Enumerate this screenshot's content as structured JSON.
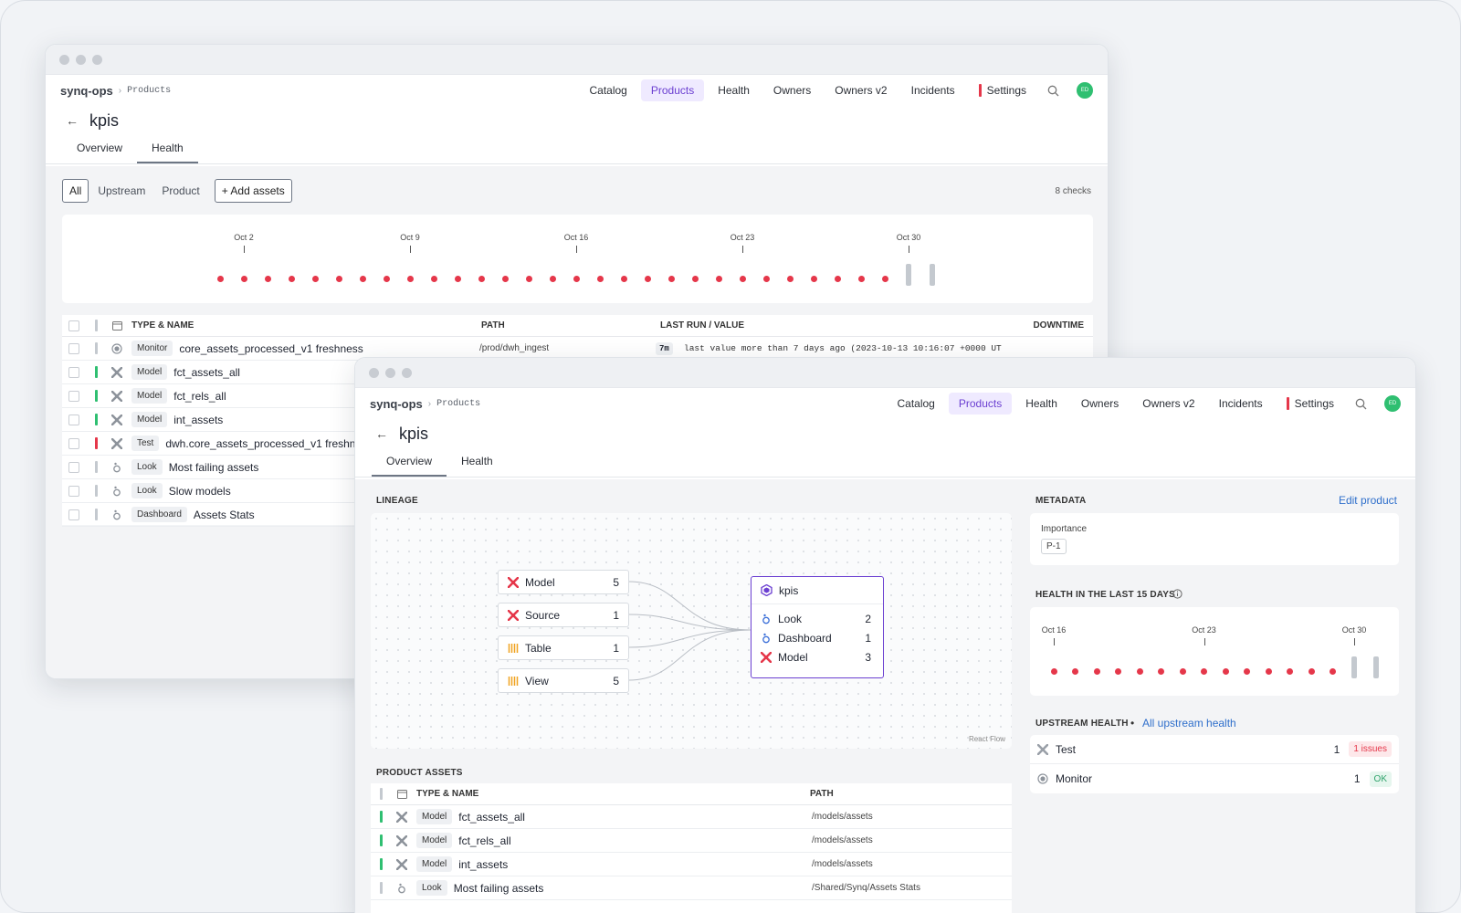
{
  "nav": {
    "brand": "synq-ops",
    "crumb": "Products",
    "items": [
      "Catalog",
      "Products",
      "Health",
      "Owners",
      "Owners v2",
      "Incidents",
      "Settings"
    ],
    "avatar": "ED"
  },
  "page": {
    "title": "kpis",
    "tabs": [
      "Overview",
      "Health"
    ]
  },
  "back_window": {
    "filters": [
      "All",
      "Upstream",
      "Product"
    ],
    "add_assets": "+ Add assets",
    "checks": "8 checks",
    "timeline": {
      "labels": [
        "Oct 2",
        "Oct 9",
        "Oct 16",
        "Oct 23",
        "Oct 30"
      ],
      "red_days": 29,
      "gray_days": 2
    },
    "columns": [
      "TYPE & NAME",
      "PATH",
      "LAST RUN / VALUE",
      "DOWNTIME"
    ],
    "rows": [
      {
        "status": "gray",
        "icon": "monitor-icon",
        "type": "Monitor",
        "name": "core_assets_processed_v1 freshness",
        "path": "/prod/dwh_ingest",
        "badge": "7m",
        "value": "last value more than 7 days ago (2023-10-13 10:16:07 +0000 UT"
      },
      {
        "status": "green",
        "icon": "model-icon",
        "type": "Model",
        "name": "fct_assets_all"
      },
      {
        "status": "green",
        "icon": "model-icon",
        "type": "Model",
        "name": "fct_rels_all"
      },
      {
        "status": "green",
        "icon": "model-icon",
        "type": "Model",
        "name": "int_assets"
      },
      {
        "status": "red",
        "icon": "model-icon",
        "type": "Test",
        "name": "dwh.core_assets_processed_v1 freshne"
      },
      {
        "status": "gray",
        "icon": "look-icon",
        "type": "Look",
        "name": "Most failing assets"
      },
      {
        "status": "gray",
        "icon": "look-icon",
        "type": "Look",
        "name": "Slow models"
      },
      {
        "status": "gray",
        "icon": "look-icon",
        "type": "Dashboard",
        "name": "Assets Stats"
      }
    ]
  },
  "front_window": {
    "lineage_title": "LINEAGE",
    "sources": [
      {
        "icon": "model-icon",
        "label": "Model",
        "count": "5"
      },
      {
        "icon": "source-icon",
        "label": "Source",
        "count": "1"
      },
      {
        "icon": "table-icon",
        "label": "Table",
        "count": "1"
      },
      {
        "icon": "view-icon",
        "label": "View",
        "count": "5"
      }
    ],
    "kpis_node": {
      "title": "kpis",
      "rows": [
        {
          "icon": "look-icon",
          "label": "Look",
          "count": "2"
        },
        {
          "icon": "look-icon",
          "label": "Dashboard",
          "count": "1"
        },
        {
          "icon": "model-icon",
          "label": "Model",
          "count": "3"
        }
      ]
    },
    "react_flow": "React Flow",
    "metadata": {
      "title": "METADATA",
      "edit": "Edit product",
      "importance_label": "Importance",
      "importance_value": "P-1"
    },
    "health": {
      "title": "HEALTH IN THE LAST 15 DAYS",
      "labels": [
        "Oct 16",
        "Oct 23",
        "Oct 30"
      ],
      "red_days": 14,
      "gray_days": 2
    },
    "upstream": {
      "title": "UPSTREAM HEALTH",
      "link": "All upstream health",
      "rows": [
        {
          "icon": "test-icon",
          "label": "Test",
          "count": "1",
          "badge": "1 issues",
          "badge_color": "#e5374a"
        },
        {
          "icon": "monitor-icon",
          "label": "Monitor",
          "count": "1",
          "badge": "OK",
          "badge_color": "#2fa36b"
        }
      ]
    },
    "assets": {
      "title": "PRODUCT ASSETS",
      "columns": [
        "TYPE & NAME",
        "PATH"
      ],
      "rows": [
        {
          "status": "green",
          "icon": "model-icon",
          "type": "Model",
          "name": "fct_assets_all",
          "path": "/models/assets"
        },
        {
          "status": "green",
          "icon": "model-icon",
          "type": "Model",
          "name": "fct_rels_all",
          "path": "/models/assets"
        },
        {
          "status": "green",
          "icon": "model-icon",
          "type": "Model",
          "name": "int_assets",
          "path": "/models/assets"
        },
        {
          "status": "gray",
          "icon": "look-icon",
          "type": "Look",
          "name": "Most failing assets",
          "path": "/Shared/Synq/Assets Stats"
        }
      ]
    }
  },
  "colors": {
    "accent": "#6b3fd1",
    "red": "#e5374a",
    "green": "#2fbf71",
    "gray": "#c4c9cf",
    "link": "#2f6fcb"
  }
}
